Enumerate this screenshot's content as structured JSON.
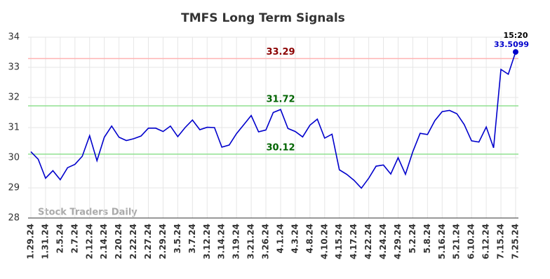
{
  "chart_data": {
    "type": "line",
    "title": "TMFS Long Term Signals",
    "categories": [
      "1.29.24",
      null,
      "1.31.24",
      null,
      "2.5.24",
      null,
      "2.7.24",
      null,
      "2.12.24",
      null,
      "2.14.24",
      null,
      "2.20.24",
      null,
      "2.22.24",
      null,
      "2.27.24",
      null,
      "2.29.24",
      null,
      "3.5.24",
      null,
      "3.7.24",
      null,
      "3.12.24",
      null,
      "3.14.24",
      null,
      "3.19.24",
      null,
      "3.21.24",
      null,
      "3.26.24",
      null,
      "4.1.24",
      null,
      "4.3.24",
      null,
      "4.8.24",
      null,
      "4.10.24",
      null,
      "4.15.24",
      null,
      "4.17.24",
      null,
      "4.22.24",
      null,
      "4.24.24",
      null,
      "4.29.24",
      null,
      "5.2.24",
      null,
      "5.8.24",
      null,
      "5.16.24",
      null,
      "5.21.24",
      null,
      "6.10.24",
      null,
      "6.12.24",
      null,
      "7.15.24",
      null,
      "7.25.24"
    ],
    "series": [
      {
        "color": "#0000cc",
        "values": [
          30.2,
          29.95,
          29.32,
          29.57,
          29.27,
          29.67,
          29.78,
          30.05,
          30.73,
          29.9,
          30.68,
          31.05,
          30.68,
          30.57,
          30.63,
          30.72,
          30.98,
          30.98,
          30.87,
          31.05,
          30.7,
          31.0,
          31.25,
          30.93,
          31.01,
          31.0,
          30.35,
          30.42,
          30.8,
          31.1,
          31.4,
          30.86,
          30.92,
          31.5,
          31.6,
          30.97,
          30.87,
          30.69,
          31.08,
          31.28,
          30.65,
          30.78,
          29.6,
          29.45,
          29.25,
          28.99,
          29.32,
          29.72,
          29.76,
          29.46,
          30.0,
          29.45,
          30.2,
          30.81,
          30.77,
          31.23,
          31.53,
          31.57,
          31.46,
          31.1,
          30.56,
          30.52,
          31.02,
          30.33,
          32.93,
          32.77,
          33.5099
        ]
      }
    ],
    "reference_lines": [
      {
        "value": 33.29,
        "color": "#ffb3b3",
        "label_color": "#8b0000"
      },
      {
        "value": 31.72,
        "color": "#90e090",
        "label_color": "#006400"
      },
      {
        "value": 30.12,
        "color": "#90e090",
        "label_color": "#006400"
      }
    ],
    "last_point_time": "15:20",
    "watermark": "Stock Traders Daily",
    "ylim": [
      28,
      34
    ],
    "yticks": [
      28,
      29,
      30,
      31,
      32,
      33,
      34
    ],
    "grid": true
  }
}
